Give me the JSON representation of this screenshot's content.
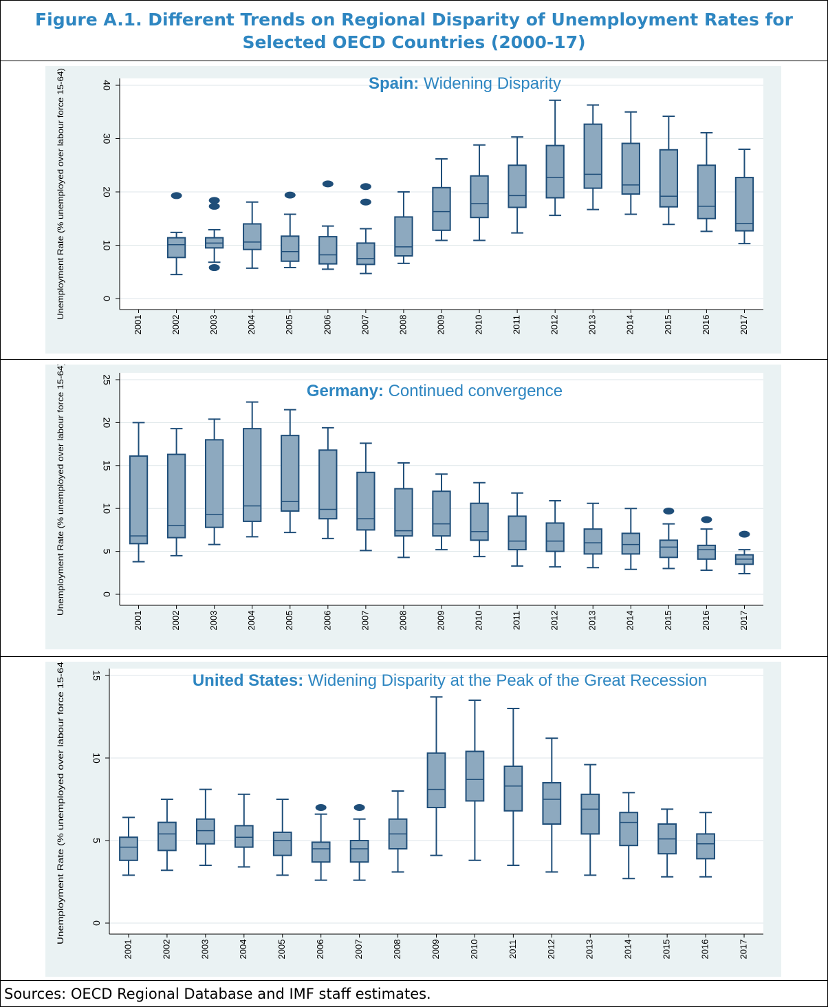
{
  "figure": {
    "title_line1": "Figure A.1. Different Trends on Regional Disparity of Unemployment Rates for",
    "title_line2": "Selected OECD Countries (2000-17)",
    "source": "Sources: OECD Regional Database and IMF staff estimates."
  },
  "colors": {
    "box_fill": "#8DA9BF",
    "box_stroke": "#1F4E79",
    "title_blue": "#2E86C1",
    "panel_bg": "#EAF2F3",
    "grid": "#DDE6E8"
  },
  "chart_data": [
    {
      "type": "box",
      "title_bold": "Spain:",
      "title_rest": "Widening Disparity",
      "ylabel": "Unemployment Rate (% unemployed over labour force 15-64)",
      "ylim": [
        0,
        40
      ],
      "yticks": [
        0,
        10,
        20,
        30,
        40
      ],
      "categories": [
        "2001",
        "2002",
        "2003",
        "2004",
        "2005",
        "2006",
        "2007",
        "2008",
        "2009",
        "2010",
        "2011",
        "2012",
        "2013",
        "2014",
        "2015",
        "2016",
        "2017"
      ],
      "boxes": [
        null,
        {
          "low": 4.5,
          "q1": 7.7,
          "median": 10.1,
          "q3": 11.4,
          "high": 12.4,
          "outliers": [
            19.3
          ]
        },
        {
          "low": 6.8,
          "q1": 9.5,
          "median": 10.4,
          "q3": 11.4,
          "high": 12.9,
          "outliers": [
            18.4,
            17.3,
            5.8
          ]
        },
        {
          "low": 5.7,
          "q1": 9.2,
          "median": 10.6,
          "q3": 14.0,
          "high": 18.1,
          "outliers": []
        },
        {
          "low": 5.8,
          "q1": 7.0,
          "median": 8.8,
          "q3": 11.7,
          "high": 15.8,
          "outliers": [
            19.4
          ]
        },
        {
          "low": 5.5,
          "q1": 6.5,
          "median": 8.2,
          "q3": 11.6,
          "high": 13.6,
          "outliers": [
            21.5
          ]
        },
        {
          "low": 4.7,
          "q1": 6.4,
          "median": 7.5,
          "q3": 10.4,
          "high": 13.1,
          "outliers": [
            21.0,
            18.1
          ]
        },
        {
          "low": 6.6,
          "q1": 8.0,
          "median": 9.7,
          "q3": 15.3,
          "high": 20.0,
          "outliers": []
        },
        {
          "low": 10.9,
          "q1": 12.8,
          "median": 16.3,
          "q3": 20.8,
          "high": 26.2,
          "outliers": []
        },
        {
          "low": 10.9,
          "q1": 15.2,
          "median": 17.8,
          "q3": 23.0,
          "high": 28.8,
          "outliers": []
        },
        {
          "low": 12.3,
          "q1": 17.1,
          "median": 19.3,
          "q3": 25.0,
          "high": 30.3,
          "outliers": []
        },
        {
          "low": 15.6,
          "q1": 18.9,
          "median": 22.7,
          "q3": 28.7,
          "high": 37.2,
          "outliers": []
        },
        {
          "low": 16.7,
          "q1": 20.7,
          "median": 23.3,
          "q3": 32.7,
          "high": 36.3,
          "outliers": []
        },
        {
          "low": 15.8,
          "q1": 19.6,
          "median": 21.3,
          "q3": 29.1,
          "high": 35.0,
          "outliers": []
        },
        {
          "low": 13.9,
          "q1": 17.2,
          "median": 19.2,
          "q3": 27.9,
          "high": 34.2,
          "outliers": []
        },
        {
          "low": 12.6,
          "q1": 15.0,
          "median": 17.3,
          "q3": 25.0,
          "high": 31.1,
          "outliers": []
        },
        {
          "low": 10.3,
          "q1": 12.7,
          "median": 14.1,
          "q3": 22.7,
          "high": 28.0,
          "outliers": []
        }
      ]
    },
    {
      "type": "box",
      "title_bold": "Germany:",
      "title_rest": "Continued convergence",
      "ylabel": "Unemployment Rate (% unemployed over labour force 15-64)",
      "ylim": [
        0,
        25
      ],
      "yticks": [
        0,
        5,
        10,
        15,
        20,
        25
      ],
      "categories": [
        "2001",
        "2002",
        "2003",
        "2004",
        "2005",
        "2006",
        "2007",
        "2008",
        "2009",
        "2010",
        "2011",
        "2012",
        "2013",
        "2014",
        "2015",
        "2016",
        "2017"
      ],
      "boxes": [
        {
          "low": 3.8,
          "q1": 5.9,
          "median": 6.8,
          "q3": 16.1,
          "high": 20.0,
          "outliers": []
        },
        {
          "low": 4.5,
          "q1": 6.6,
          "median": 8.0,
          "q3": 16.3,
          "high": 19.3,
          "outliers": []
        },
        {
          "low": 5.8,
          "q1": 7.8,
          "median": 9.3,
          "q3": 18.0,
          "high": 20.4,
          "outliers": []
        },
        {
          "low": 6.7,
          "q1": 8.5,
          "median": 10.3,
          "q3": 19.3,
          "high": 22.4,
          "outliers": []
        },
        {
          "low": 7.2,
          "q1": 9.7,
          "median": 10.8,
          "q3": 18.5,
          "high": 21.5,
          "outliers": []
        },
        {
          "low": 6.5,
          "q1": 8.8,
          "median": 9.9,
          "q3": 16.8,
          "high": 19.4,
          "outliers": []
        },
        {
          "low": 5.1,
          "q1": 7.5,
          "median": 8.8,
          "q3": 14.2,
          "high": 17.6,
          "outliers": []
        },
        {
          "low": 4.3,
          "q1": 6.8,
          "median": 7.4,
          "q3": 12.3,
          "high": 15.3,
          "outliers": []
        },
        {
          "low": 5.2,
          "q1": 6.8,
          "median": 8.2,
          "q3": 12.0,
          "high": 14.0,
          "outliers": []
        },
        {
          "low": 4.4,
          "q1": 6.3,
          "median": 7.3,
          "q3": 10.6,
          "high": 13.0,
          "outliers": []
        },
        {
          "low": 3.3,
          "q1": 5.2,
          "median": 6.2,
          "q3": 9.1,
          "high": 11.8,
          "outliers": []
        },
        {
          "low": 3.2,
          "q1": 5.0,
          "median": 6.2,
          "q3": 8.3,
          "high": 10.9,
          "outliers": []
        },
        {
          "low": 3.1,
          "q1": 4.7,
          "median": 6.0,
          "q3": 7.6,
          "high": 10.6,
          "outliers": []
        },
        {
          "low": 2.9,
          "q1": 4.7,
          "median": 5.8,
          "q3": 7.1,
          "high": 10.0,
          "outliers": []
        },
        {
          "low": 3.0,
          "q1": 4.3,
          "median": 5.5,
          "q3": 6.3,
          "high": 8.2,
          "outliers": [
            9.7
          ]
        },
        {
          "low": 2.8,
          "q1": 4.1,
          "median": 5.2,
          "q3": 5.7,
          "high": 7.6,
          "outliers": [
            8.7
          ]
        },
        {
          "low": 2.4,
          "q1": 3.5,
          "median": 4.1,
          "q3": 4.6,
          "high": 5.2,
          "outliers": [
            7.0
          ]
        }
      ]
    },
    {
      "type": "box",
      "title_bold": "United States:",
      "title_rest": "Widening Disparity at the Peak of the Great Recession",
      "ylabel": "Unemployment Rate (% unemployed over labour force 15-64)",
      "ylim": [
        0,
        15
      ],
      "yticks": [
        0,
        5,
        10,
        15
      ],
      "categories": [
        "2001",
        "2002",
        "2003",
        "2004",
        "2005",
        "2006",
        "2007",
        "2008",
        "2009",
        "2010",
        "2011",
        "2012",
        "2013",
        "2014",
        "2015",
        "2016",
        "2017"
      ],
      "boxes": [
        {
          "low": 2.9,
          "q1": 3.8,
          "median": 4.6,
          "q3": 5.2,
          "high": 6.4,
          "outliers": []
        },
        {
          "low": 3.2,
          "q1": 4.4,
          "median": 5.4,
          "q3": 6.1,
          "high": 7.5,
          "outliers": []
        },
        {
          "low": 3.5,
          "q1": 4.8,
          "median": 5.6,
          "q3": 6.3,
          "high": 8.1,
          "outliers": []
        },
        {
          "low": 3.4,
          "q1": 4.6,
          "median": 5.2,
          "q3": 5.9,
          "high": 7.8,
          "outliers": []
        },
        {
          "low": 2.9,
          "q1": 4.1,
          "median": 5.0,
          "q3": 5.5,
          "high": 7.5,
          "outliers": []
        },
        {
          "low": 2.6,
          "q1": 3.7,
          "median": 4.5,
          "q3": 4.9,
          "high": 6.6,
          "outliers": [
            7.0
          ]
        },
        {
          "low": 2.6,
          "q1": 3.7,
          "median": 4.5,
          "q3": 5.0,
          "high": 6.3,
          "outliers": [
            7.0
          ]
        },
        {
          "low": 3.1,
          "q1": 4.5,
          "median": 5.4,
          "q3": 6.3,
          "high": 8.0,
          "outliers": []
        },
        {
          "low": 4.1,
          "q1": 7.0,
          "median": 8.1,
          "q3": 10.3,
          "high": 13.7,
          "outliers": []
        },
        {
          "low": 3.8,
          "q1": 7.4,
          "median": 8.7,
          "q3": 10.4,
          "high": 13.5,
          "outliers": []
        },
        {
          "low": 3.5,
          "q1": 6.8,
          "median": 8.3,
          "q3": 9.5,
          "high": 13.0,
          "outliers": []
        },
        {
          "low": 3.1,
          "q1": 6.0,
          "median": 7.5,
          "q3": 8.5,
          "high": 11.2,
          "outliers": []
        },
        {
          "low": 2.9,
          "q1": 5.4,
          "median": 6.9,
          "q3": 7.8,
          "high": 9.6,
          "outliers": []
        },
        {
          "low": 2.7,
          "q1": 4.7,
          "median": 6.1,
          "q3": 6.7,
          "high": 7.9,
          "outliers": []
        },
        {
          "low": 2.8,
          "q1": 4.2,
          "median": 5.1,
          "q3": 6.0,
          "high": 6.9,
          "outliers": []
        },
        {
          "low": 2.8,
          "q1": 3.9,
          "median": 4.8,
          "q3": 5.4,
          "high": 6.7,
          "outliers": []
        },
        null
      ]
    }
  ]
}
